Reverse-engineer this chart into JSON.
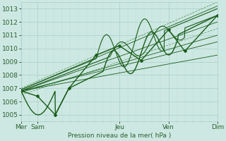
{
  "xlabel": "Pression niveau de la mer( hPa )",
  "bg_color": "#cde8e2",
  "grid_color_major": "#a8cfc8",
  "grid_color_minor": "#b8ddd8",
  "line_color": "#1a5c1a",
  "line_color_light": "#2a7a2a",
  "ylim": [
    1004.5,
    1013.5
  ],
  "xlim": [
    0,
    144
  ],
  "yticks": [
    1005,
    1006,
    1007,
    1008,
    1009,
    1010,
    1011,
    1012,
    1013
  ],
  "xtick_positions": [
    0,
    12,
    72,
    108,
    144
  ],
  "xtick_labels": [
    "Mer",
    "Sam",
    "Jeu",
    "Ven",
    "Dim"
  ],
  "font_color": "#2a6030",
  "font_size": 6.5
}
